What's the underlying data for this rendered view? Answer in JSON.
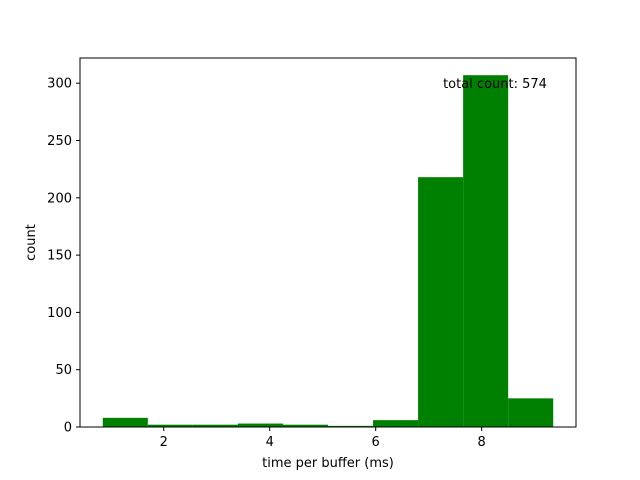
{
  "chart_data": {
    "type": "bar",
    "bin_edges": [
      0.85,
      1.7,
      2.55,
      3.4,
      4.25,
      5.1,
      5.95,
      6.8,
      7.65,
      8.5,
      9.35
    ],
    "values": [
      8,
      2,
      2,
      3,
      2,
      1,
      6,
      218,
      307,
      25
    ],
    "xlabel": "time per buffer (ms)",
    "ylabel": "count",
    "xlim": [
      0.42,
      9.78
    ],
    "ylim": [
      0,
      322
    ],
    "xticks": [
      2,
      4,
      6,
      8
    ],
    "yticks": [
      0,
      50,
      100,
      150,
      200,
      250,
      300
    ],
    "annotation": "total count: 574",
    "bar_color": "#008000",
    "grid": false,
    "legend": "none"
  }
}
